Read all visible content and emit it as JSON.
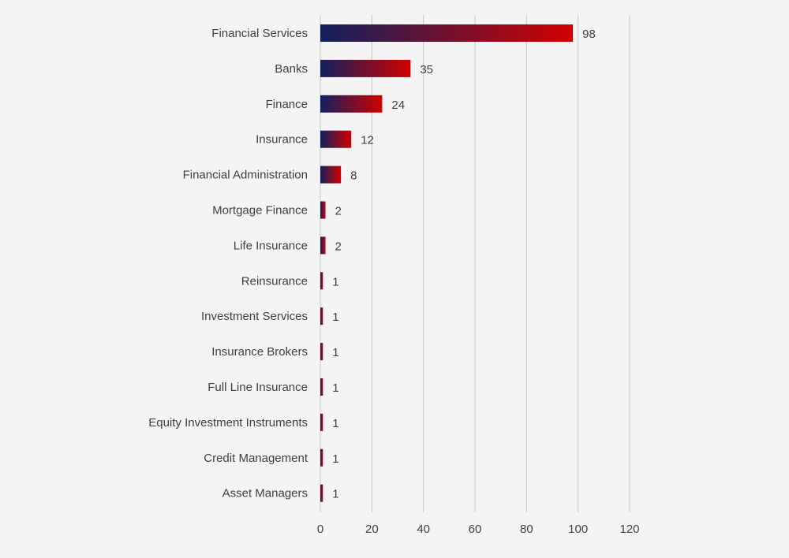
{
  "chart_data": {
    "type": "bar",
    "orientation": "horizontal",
    "categories": [
      "Financial Services",
      "Banks",
      "Finance",
      "Insurance",
      "Financial Administration",
      "Mortgage Finance",
      "Life Insurance",
      "Reinsurance",
      "Investment Services",
      "Insurance Brokers",
      "Full Line Insurance",
      "Equity Investment Instruments",
      "Credit Management",
      "Asset Managers"
    ],
    "values": [
      98,
      35,
      24,
      12,
      8,
      2,
      2,
      1,
      1,
      1,
      1,
      1,
      1,
      1
    ],
    "xlim": [
      0,
      120
    ],
    "xticks": [
      0,
      20,
      40,
      60,
      80,
      100,
      120
    ],
    "grid": true,
    "data_labels": true,
    "colors": {
      "gradient_start": "#10205e",
      "gradient_end": "#d10000",
      "background": "#f4f4f4",
      "text": "#404040",
      "grid": "#c8c8c8"
    }
  }
}
